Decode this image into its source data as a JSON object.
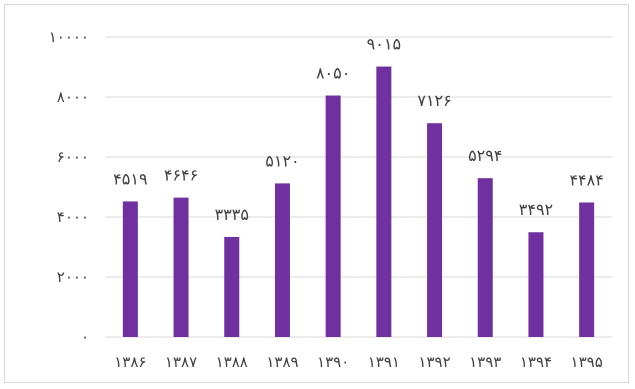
{
  "chart_data": {
    "type": "bar",
    "title": "",
    "xlabel": "",
    "ylabel": "",
    "ylim": [
      0,
      10000
    ],
    "grid": true,
    "legend": "none",
    "bar_color": "#7030a0",
    "grid_color": "#d9d9d9",
    "categories": [
      "۱۳۸۶",
      "۱۳۸۷",
      "۱۳۸۸",
      "۱۳۸۹",
      "۱۳۹۰",
      "۱۳۹۱",
      "۱۳۹۲",
      "۱۳۹۳",
      "۱۳۹۴",
      "۱۳۹۵"
    ],
    "values": [
      4519,
      4646,
      3335,
      5120,
      8050,
      9015,
      7126,
      5294,
      3492,
      4484
    ],
    "data_labels": [
      "۴۵۱۹",
      "۴۶۴۶",
      "۳۳۳۵",
      "۵۱۲۰",
      "۸۰۵۰",
      "۹۰۱۵",
      "۷۱۲۶",
      "۵۲۹۴",
      "۳۴۹۲",
      "۴۴۸۴"
    ],
    "y_ticks": [
      0,
      2000,
      4000,
      6000,
      8000,
      10000
    ],
    "y_tick_labels": [
      "۰",
      "۲۰۰۰",
      "۴۰۰۰",
      "۶۰۰۰",
      "۸۰۰۰",
      "۱۰۰۰۰"
    ]
  }
}
